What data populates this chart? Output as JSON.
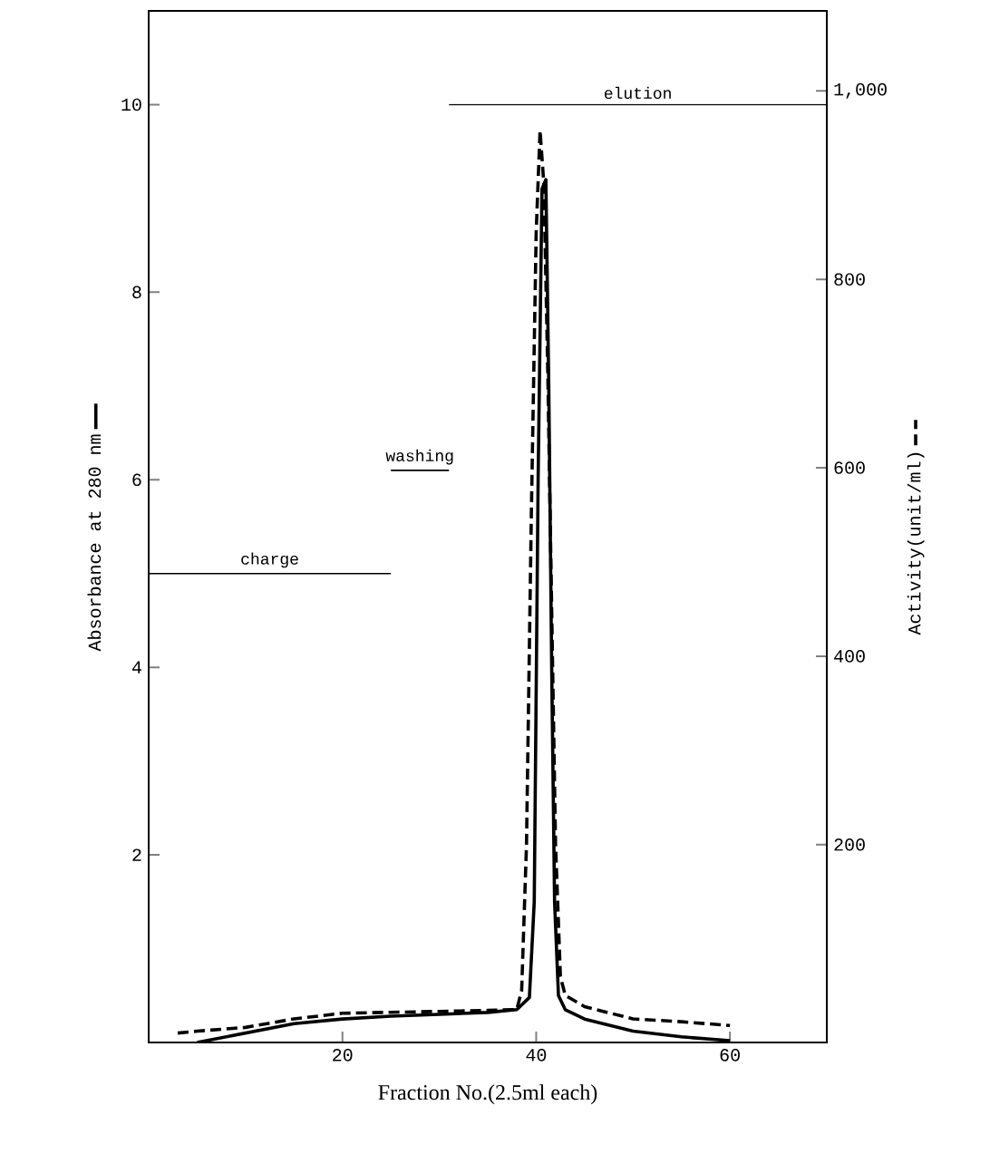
{
  "chart_data": {
    "type": "line",
    "xlabel": "Fraction No.(2.5ml each)",
    "ylabel": "Absorbance  at 280 nm",
    "y2label": "Activity(unit/ml)",
    "xlim": [
      0,
      70
    ],
    "xticks": [
      20,
      40,
      60
    ],
    "ylim": [
      0,
      11
    ],
    "yticks": [
      2,
      4,
      6,
      8,
      10
    ],
    "y2lim": [
      -10,
      1085
    ],
    "y2ticks": [
      200,
      400,
      600,
      800,
      {
        "value": 1000,
        "label": "1,000"
      }
    ],
    "series": [
      {
        "color": "#000000",
        "line_style": "solid",
        "x": [
          5,
          10,
          15,
          20,
          25,
          30,
          35,
          38,
          39.3,
          39.8,
          40.2,
          40.6,
          41,
          41.3,
          41.6,
          41.9,
          42.3,
          43,
          45,
          50,
          55,
          60
        ],
        "values": [
          0,
          0.1,
          0.2,
          0.25,
          0.28,
          0.3,
          0.32,
          0.35,
          0.48,
          1.5,
          6,
          9.1,
          9.2,
          7,
          4,
          1.5,
          0.5,
          0.35,
          0.25,
          0.12,
          0.06,
          0.02
        ]
      },
      {
        "color": "#000000",
        "line_style": "dashed",
        "axis": "y2",
        "x": [
          3,
          5,
          10,
          15,
          20,
          25,
          30,
          35,
          38,
          38.5,
          39,
          39.5,
          40,
          40.4,
          40.8,
          41.2,
          41.6,
          42,
          42.5,
          43,
          45,
          50,
          55,
          60
        ],
        "values": [
          0,
          2,
          6,
          15,
          21,
          22,
          23,
          24,
          25,
          45,
          200,
          550,
          850,
          958,
          900,
          700,
          450,
          200,
          60,
          40,
          28,
          15,
          12,
          8
        ]
      },
      {
        "name": "charge",
        "color": "#000000",
        "line_style": "solid",
        "x": [
          0,
          25
        ],
        "values": [
          5,
          5
        ]
      },
      {
        "name": "washing",
        "color": "#000000",
        "line_style": "solid",
        "x": [
          25,
          31
        ],
        "values": [
          6.1,
          6.1
        ]
      },
      {
        "name": "elution",
        "color": "#000000",
        "line_style": "solid",
        "x": [
          31,
          70
        ],
        "values": [
          10,
          10
        ]
      }
    ]
  }
}
